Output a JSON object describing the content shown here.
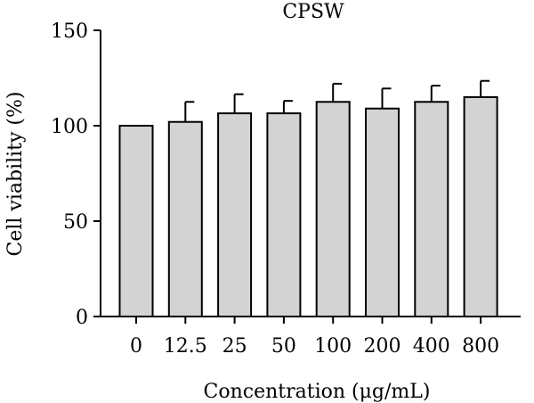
{
  "chart_data": {
    "type": "bar",
    "title": "CPSW",
    "xlabel": "Concentration (μg/mL)",
    "ylabel": "Cell viability (%)",
    "categories": [
      "0",
      "12.5",
      "25",
      "50",
      "100",
      "200",
      "400",
      "800"
    ],
    "values": [
      100,
      102,
      106.5,
      106.5,
      112.5,
      109,
      112.5,
      115
    ],
    "errors": [
      0,
      10.5,
      10,
      6.5,
      9.5,
      10.5,
      8.5,
      8.5
    ],
    "ylim": [
      0,
      150
    ],
    "yticks": [
      0,
      50,
      100,
      150
    ],
    "grid": false,
    "bar_color": "#d3d3d3",
    "edge_color": "#000000"
  }
}
